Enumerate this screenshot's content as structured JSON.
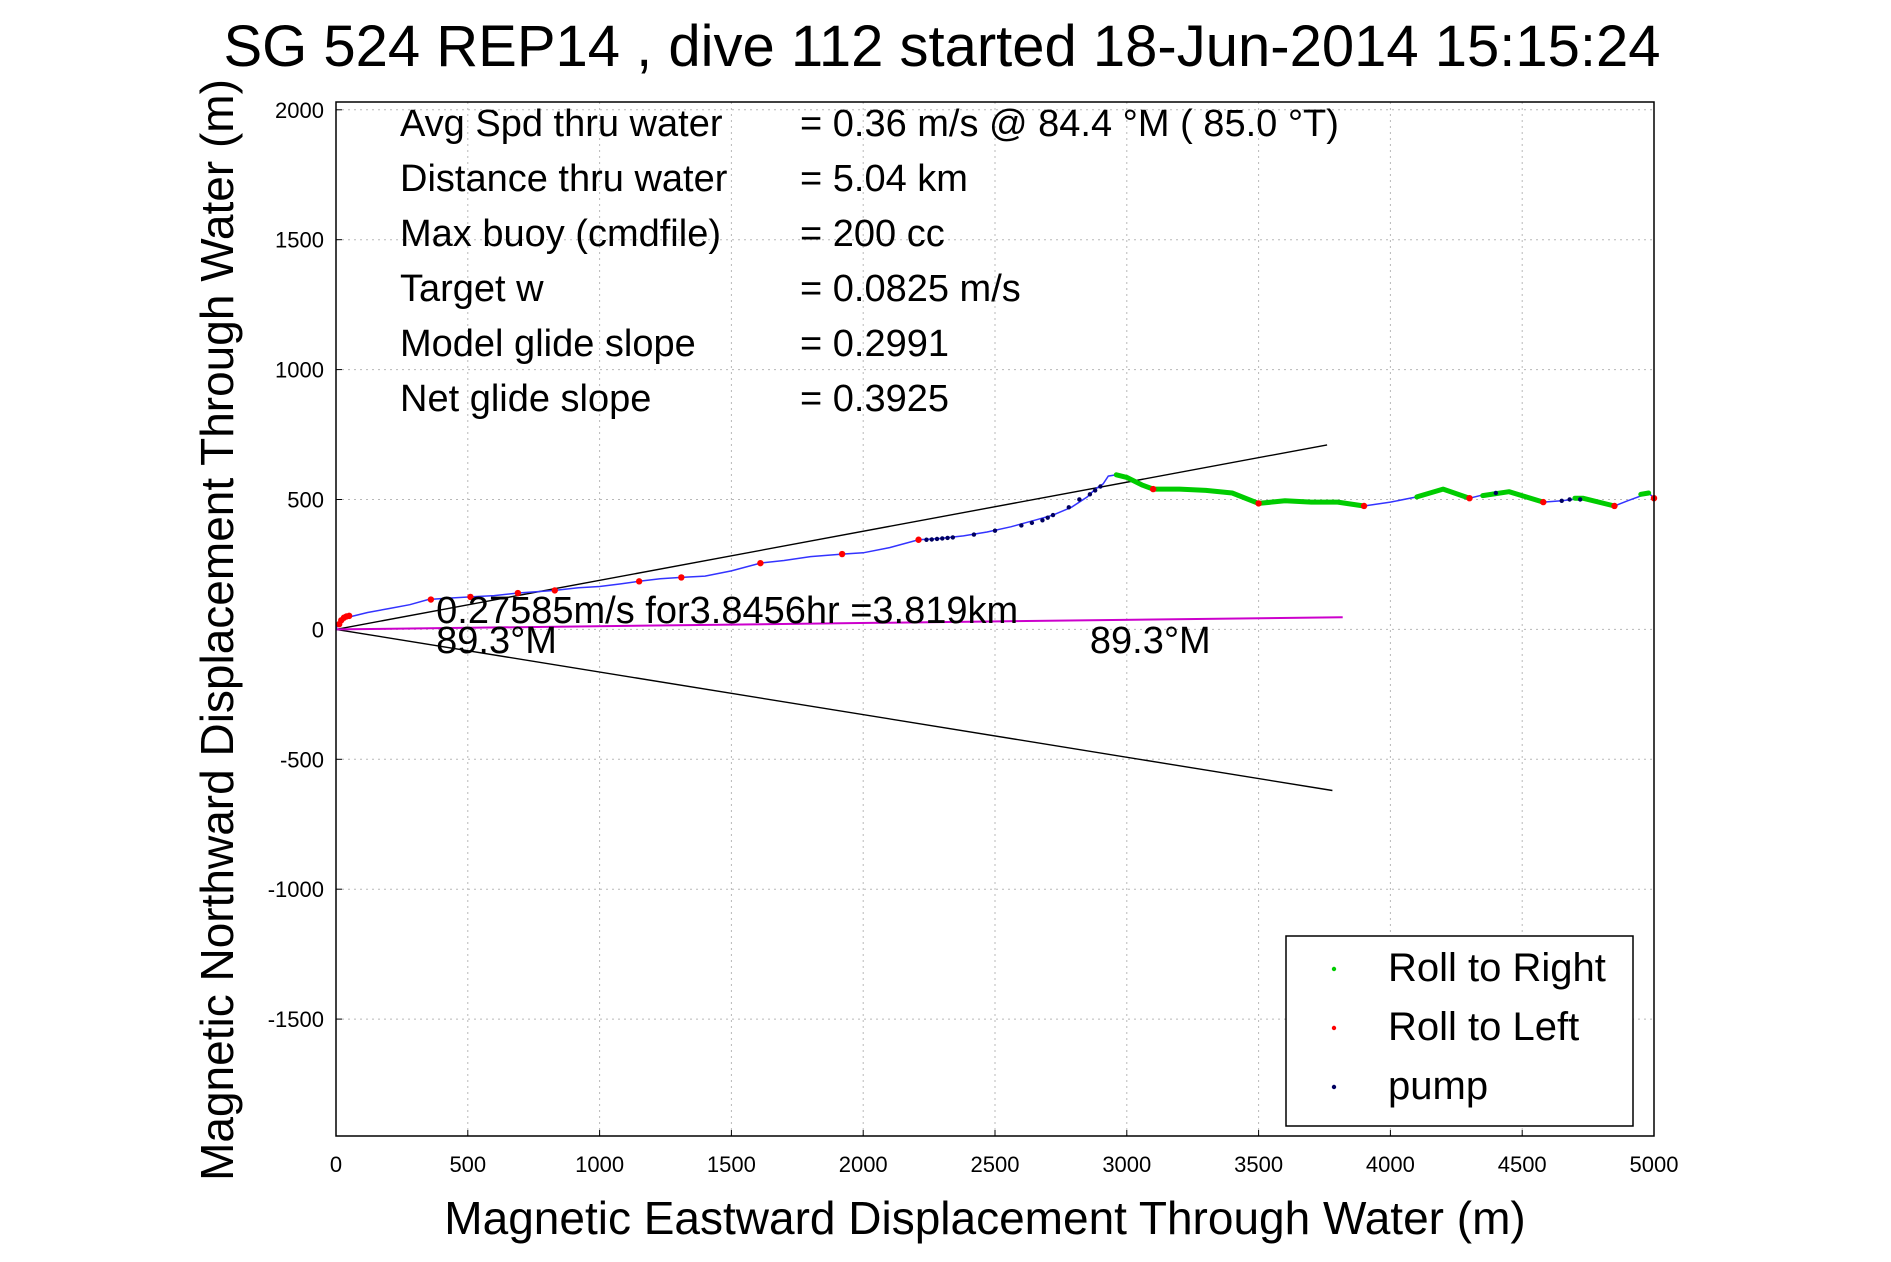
{
  "chart_data": {
    "type": "line",
    "title": "SG 524   REP14  , dive 112 started 18-Jun-2014 15:15:24",
    "xlabel": "Magnetic Eastward Displacement Through Water (m)",
    "ylabel": "Magnetic Northward Displacement Through Water (m)",
    "xlim": [
      0,
      5000
    ],
    "ylim": [
      -1950,
      2030
    ],
    "xticks": [
      0,
      500,
      1000,
      1500,
      2000,
      2500,
      3000,
      3500,
      4000,
      4500,
      5000
    ],
    "yticks": [
      2000,
      1500,
      1000,
      500,
      0,
      -500,
      -1000,
      -1500
    ],
    "grid": true,
    "legend_position": "bottom-right",
    "stats": [
      {
        "label": "Avg Spd thru water",
        "value": "=  0.36 m/s @  84.4 °M ( 85.0 °T)"
      },
      {
        "label": "Distance thru water",
        "value": "=  5.04 km"
      },
      {
        "label": "Max buoy (cmdfile)",
        "value": "= 200 cc"
      },
      {
        "label": "Target w",
        "value": "= 0.0825 m/s"
      },
      {
        "label": "Model glide slope",
        "value": "= 0.2991"
      },
      {
        "label": "Net glide slope",
        "value": "= 0.3925"
      }
    ],
    "annotations": [
      {
        "text": "0.27585m/s for3.8456hr =3.819km",
        "x": 380,
        "y": 25
      },
      {
        "text": "89.3°M",
        "x": 380,
        "y": -90
      },
      {
        "text": "89.3°M",
        "x": 2860,
        "y": -90
      }
    ],
    "legend": [
      {
        "label": "Roll to Right",
        "color": "#00cc00"
      },
      {
        "label": "Roll to Left",
        "color": "#ff0000"
      },
      {
        "label": "pump",
        "color": "#000060"
      }
    ],
    "track": {
      "name": "track",
      "color": "#3333ff",
      "x": [
        0,
        5,
        15,
        30,
        60,
        120,
        200,
        280,
        350,
        420,
        510,
        600,
        690,
        760,
        830,
        920,
        1000,
        1080,
        1150,
        1230,
        1310,
        1400,
        1500,
        1610,
        1700,
        1800,
        1920,
        2000,
        2100,
        2210,
        2290,
        2380,
        2470,
        2560,
        2650,
        2720,
        2790,
        2850,
        2880,
        2910,
        2930,
        2960,
        3000,
        3060,
        3100,
        3200,
        3300,
        3400,
        3500,
        3600,
        3700,
        3800,
        3900,
        4000,
        4100,
        4200,
        4300,
        4400,
        4450,
        4500,
        4580,
        4650,
        4730,
        4850,
        4900,
        4980,
        5000
      ],
      "y": [
        0,
        15,
        35,
        45,
        50,
        65,
        80,
        95,
        115,
        120,
        125,
        130,
        140,
        145,
        150,
        160,
        165,
        175,
        185,
        195,
        200,
        205,
        225,
        255,
        265,
        280,
        290,
        295,
        315,
        345,
        350,
        360,
        375,
        395,
        420,
        440,
        470,
        510,
        540,
        560,
        590,
        595,
        585,
        555,
        540,
        540,
        535,
        525,
        485,
        495,
        490,
        490,
        475,
        490,
        510,
        540,
        505,
        530,
        530,
        515,
        490,
        495,
        505,
        475,
        495,
        525,
        505
      ]
    },
    "roll_right": {
      "name": "Roll to Right",
      "color": "#00cc00",
      "segments": [
        {
          "x": [
            2960,
            3000,
            3060,
            3100
          ],
          "y": [
            595,
            585,
            555,
            540
          ]
        },
        {
          "x": [
            3100,
            3200,
            3300,
            3400,
            3500
          ],
          "y": [
            540,
            540,
            535,
            525,
            485
          ]
        },
        {
          "x": [
            3500,
            3600,
            3700,
            3800,
            3900
          ],
          "y": [
            485,
            495,
            490,
            490,
            475
          ]
        },
        {
          "x": [
            4100,
            4200,
            4300
          ],
          "y": [
            510,
            540,
            505
          ]
        },
        {
          "x": [
            4350,
            4450,
            4580
          ],
          "y": [
            515,
            530,
            490
          ]
        },
        {
          "x": [
            4700,
            4730,
            4850
          ],
          "y": [
            505,
            505,
            475
          ]
        },
        {
          "x": [
            4950,
            4980
          ],
          "y": [
            520,
            525
          ]
        }
      ]
    },
    "roll_left_points": {
      "name": "Roll to Left",
      "color": "#ff0000",
      "x": [
        12,
        20,
        30,
        40,
        50,
        360,
        510,
        690,
        830,
        1150,
        1310,
        1610,
        1920,
        2210,
        3100,
        3500,
        3900,
        4300,
        4580,
        4850,
        5000
      ],
      "y": [
        20,
        35,
        45,
        50,
        52,
        115,
        125,
        140,
        150,
        185,
        200,
        255,
        290,
        345,
        540,
        485,
        475,
        505,
        490,
        475,
        505
      ]
    },
    "pump_points": {
      "name": "pump",
      "color": "#000060",
      "x": [
        2240,
        2260,
        2280,
        2300,
        2320,
        2340,
        2420,
        2500,
        2600,
        2640,
        2680,
        2700,
        2720,
        2780,
        2820,
        2860,
        2880,
        2900,
        4400,
        4650,
        4680,
        4720
      ],
      "y": [
        345,
        346,
        348,
        350,
        352,
        354,
        365,
        380,
        400,
        410,
        420,
        430,
        440,
        470,
        500,
        520,
        535,
        550,
        525,
        495,
        500,
        500
      ]
    },
    "net_line": {
      "name": "net",
      "color": "#cc00cc",
      "x": [
        0,
        3819
      ],
      "y": [
        0,
        47
      ]
    },
    "bound_upper": {
      "name": "upper",
      "color": "#000000",
      "x": [
        0,
        3760
      ],
      "y": [
        0,
        710
      ]
    },
    "bound_lower": {
      "name": "lower",
      "color": "#000000",
      "x": [
        0,
        3780
      ],
      "y": [
        0,
        -620
      ]
    }
  }
}
